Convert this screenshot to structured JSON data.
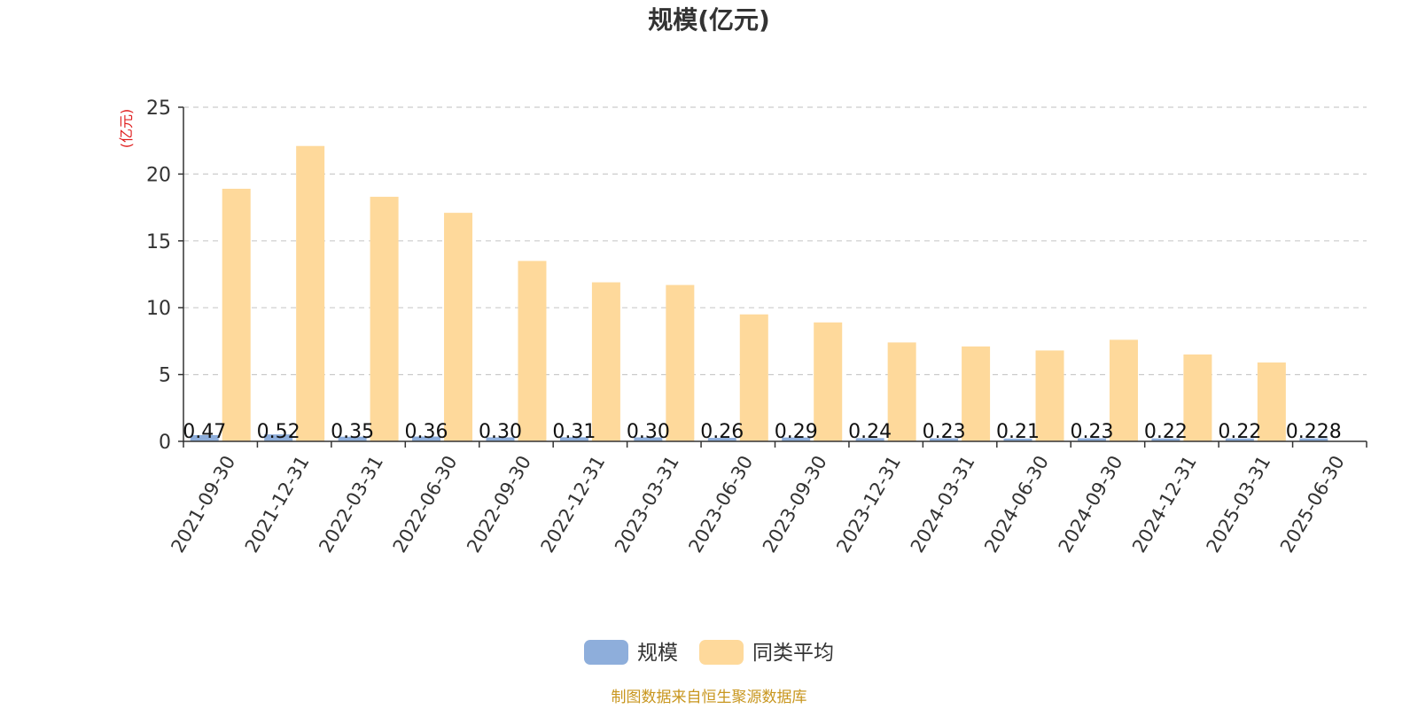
{
  "chart_data": {
    "type": "bar",
    "title": "规模(亿元)",
    "unit_label": "(亿元)",
    "categories": [
      "2021-09-30",
      "2021-12-31",
      "2022-03-31",
      "2022-06-30",
      "2022-09-30",
      "2022-12-31",
      "2023-03-31",
      "2023-06-30",
      "2023-09-30",
      "2023-12-31",
      "2024-03-31",
      "2024-06-30",
      "2024-09-30",
      "2024-12-31",
      "2025-03-31",
      "2025-06-30"
    ],
    "series": [
      {
        "name": "规模",
        "color": "#8eaedb",
        "values": [
          0.47,
          0.52,
          0.35,
          0.36,
          0.3,
          0.31,
          0.3,
          0.26,
          0.29,
          0.24,
          0.23,
          0.21,
          0.23,
          0.22,
          0.22,
          0.228
        ],
        "value_labels": [
          "0.47",
          "0.52",
          "0.35",
          "0.36",
          "0.30",
          "0.31",
          "0.30",
          "0.26",
          "0.29",
          "0.24",
          "0.23",
          "0.21",
          "0.23",
          "0.22",
          "0.22",
          "0.228"
        ]
      },
      {
        "name": "同类平均",
        "color": "#fed99b",
        "values": [
          18.9,
          22.1,
          18.3,
          17.1,
          13.5,
          11.9,
          11.7,
          9.5,
          8.9,
          7.4,
          7.1,
          6.8,
          7.6,
          6.5,
          5.9,
          null
        ]
      }
    ],
    "ylim": [
      0,
      25
    ],
    "yticks": [
      0,
      5,
      10,
      15,
      20,
      25
    ],
    "grid": true,
    "legend_position": "bottom-center"
  },
  "footer": "制图数据来自恒生聚源数据库"
}
